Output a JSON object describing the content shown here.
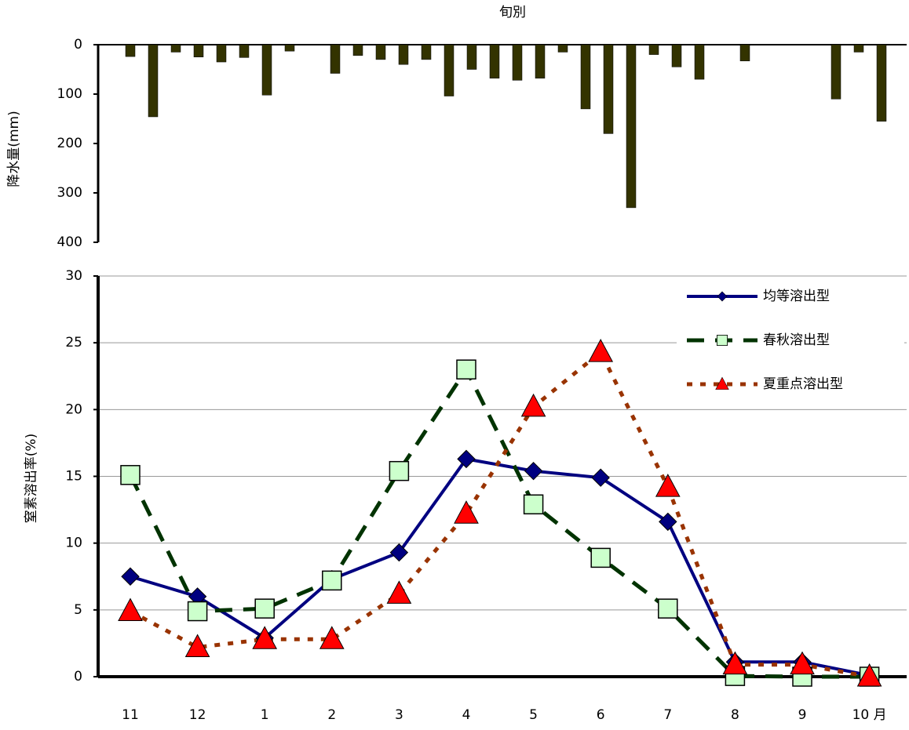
{
  "chart_data": [
    {
      "type": "bar",
      "title": "旬別",
      "y_label": "降水量(mm)",
      "color": "#333300",
      "values": [
        0,
        24,
        146,
        15,
        25,
        35,
        26,
        102,
        13,
        0,
        58,
        22,
        30,
        40,
        30,
        104,
        50,
        68,
        72,
        68,
        15,
        130,
        180,
        330,
        20,
        45,
        70,
        0,
        33,
        0,
        0,
        0,
        110,
        15,
        155,
        0
      ],
      "ylim": [
        0,
        400
      ],
      "yticks": [
        0,
        100,
        200,
        300,
        400
      ],
      "y_reversed": true
    },
    {
      "type": "line",
      "y_label": "窒素溶出率(%)",
      "categories": [
        "11",
        "12",
        "1",
        "2",
        "3",
        "4",
        "5",
        "6",
        "7",
        "8",
        "9",
        "10 月"
      ],
      "series": [
        {
          "name": "均等溶出型",
          "color": "#000080",
          "marker": "diamond",
          "marker_color": "#000080",
          "dash": "solid",
          "values": [
            7.5,
            6.0,
            2.9,
            7.3,
            9.3,
            16.3,
            15.4,
            14.9,
            11.6,
            1.1,
            1.1,
            0.1
          ]
        },
        {
          "name": "春秋溶出型",
          "color": "#003300",
          "marker": "square",
          "marker_color": "#ccffcc",
          "dash": "long",
          "values": [
            15.1,
            4.9,
            5.1,
            7.2,
            15.4,
            23.0,
            12.9,
            8.9,
            5.1,
            0.05,
            0,
            0
          ]
        },
        {
          "name": "夏重点溶出型",
          "color": "#993300",
          "marker": "triangle",
          "marker_color": "#ff0000",
          "dash": "short",
          "values": [
            4.9,
            2.2,
            2.8,
            2.8,
            6.2,
            12.2,
            20.2,
            24.3,
            14.2,
            0.9,
            0.9,
            0
          ]
        }
      ],
      "ylim": [
        0,
        30
      ],
      "yticks": [
        0,
        5,
        10,
        15,
        20,
        25,
        30
      ],
      "grid": true
    }
  ]
}
